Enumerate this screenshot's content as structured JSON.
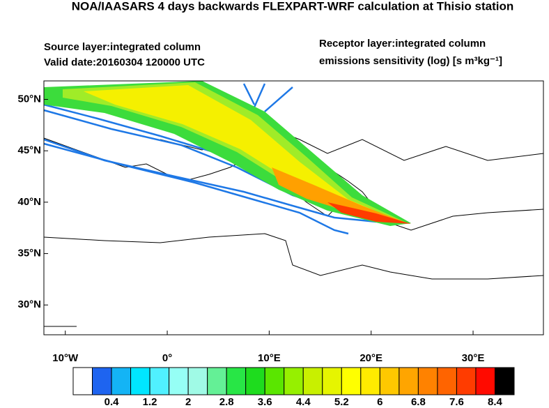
{
  "header": {
    "title": "NOA/IAASARS 4 days backwards FLEXPART-WRF calculation at Thisio station",
    "source_layer": "Source layer:integrated column",
    "valid_date": "Valid date:20160304 120000 UTC",
    "receptor_layer": "Receptor layer:integrated column",
    "units": "emissions sensitivity (log) [s m³kg⁻¹]"
  },
  "map": {
    "xlim": [
      -12.1,
      36.9
    ],
    "ylim": [
      27.1,
      51.8
    ],
    "xticks": [
      {
        "value": -10,
        "label": "10°W"
      },
      {
        "value": 0,
        "label": "0°"
      },
      {
        "value": 10,
        "label": "10°E"
      },
      {
        "value": 20,
        "label": "20°E"
      },
      {
        "value": 30,
        "label": "30°E"
      }
    ],
    "yticks": [
      {
        "value": 30,
        "label": "30°N"
      },
      {
        "value": 35,
        "label": "35°N"
      },
      {
        "value": 40,
        "label": "40°N"
      },
      {
        "value": 45,
        "label": "45°N"
      },
      {
        "value": 50,
        "label": "50°N"
      }
    ]
  },
  "colorbar": {
    "clim": [
      -0.4,
      8.8
    ],
    "colors": [
      "#ffffff",
      "#1e64f0",
      "#14b4f5",
      "#00e6ff",
      "#50f0ff",
      "#96fff5",
      "#a0fae6",
      "#64f096",
      "#28e646",
      "#1edc1e",
      "#5ae600",
      "#96f000",
      "#c8f000",
      "#e6f500",
      "#ffff00",
      "#ffeb00",
      "#ffc800",
      "#ffa500",
      "#ff8200",
      "#ff6400",
      "#ff3c00",
      "#ff0a00",
      "#000000"
    ],
    "ticks": [
      0.4,
      1.2,
      2,
      2.8,
      3.6,
      4.4,
      5.2,
      6,
      6.8,
      7.6,
      8.4
    ]
  }
}
